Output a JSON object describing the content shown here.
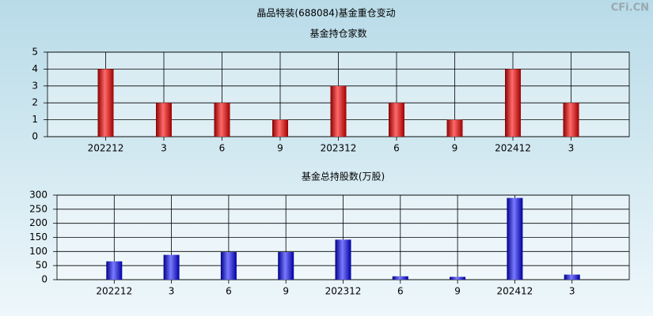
{
  "title": "晶品特装(688084)基金重仓变动",
  "watermark": "CFi.CN",
  "chart_data": [
    {
      "type": "bar",
      "title": "基金持仓家数",
      "categories": [
        "202212",
        "3",
        "6",
        "9",
        "202312",
        "6",
        "9",
        "202412",
        "3"
      ],
      "values": [
        4,
        2,
        2,
        1,
        3,
        2,
        1,
        4,
        2
      ],
      "color": "#d42020",
      "ylim": [
        0,
        5
      ],
      "yticks": [
        0,
        1,
        2,
        3,
        4,
        5
      ],
      "grid": true
    },
    {
      "type": "bar",
      "title": "基金总持股数(万股)",
      "categories": [
        "202212",
        "3",
        "6",
        "9",
        "202312",
        "6",
        "9",
        "202412",
        "3"
      ],
      "values": [
        65,
        88,
        98,
        98,
        142,
        12,
        10,
        290,
        18
      ],
      "color": "#2a2ad0",
      "ylim": [
        0,
        300
      ],
      "yticks": [
        0,
        50,
        100,
        150,
        200,
        250,
        300
      ],
      "grid": true
    }
  ]
}
